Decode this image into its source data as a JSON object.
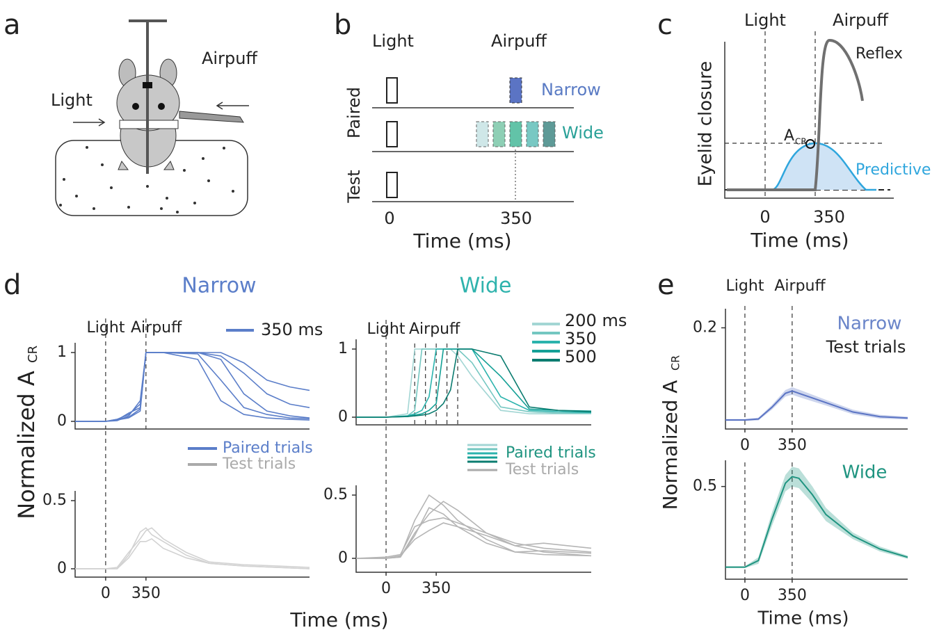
{
  "panels": {
    "a": {
      "label": "a",
      "light": "Light",
      "airpuff": "Airpuff"
    },
    "b": {
      "label": "b",
      "light": "Light",
      "airpuff": "Airpuff",
      "paired": "Paired",
      "test": "Test",
      "narrow": "Narrow",
      "wide": "Wide",
      "xtick0": "0",
      "xtick1": "350",
      "xlabel": "Time (ms)"
    },
    "c": {
      "label": "c",
      "light": "Light",
      "airpuff": "Airpuff",
      "reflex": "Reflex",
      "ylabel": "Eyelid closure",
      "acr": "A",
      "acr_sub": "CR",
      "predictive": "Predictive",
      "xtick0": "0",
      "xtick1": "350",
      "xlabel": "Time (ms)"
    },
    "d": {
      "label": "d",
      "ylabel": "Normalized A",
      "ylabel_sub": "CR",
      "xlabel": "Time (ms)"
    },
    "e": {
      "label": "e",
      "ylabel": "Normalized A",
      "ylabel_sub": "CR",
      "xlabel": "Time (ms)"
    }
  },
  "chart_data": [
    {
      "type": "line",
      "title": "Narrow",
      "xlim": [
        -265,
        1770
      ],
      "ylim": [
        0,
        1
      ],
      "yticks": [
        0,
        1
      ],
      "markers": [
        0,
        350
      ],
      "marker_labels": [
        "Light",
        "Airpuff"
      ],
      "x": [
        -265,
        0,
        100,
        200,
        300,
        350,
        500,
        800,
        1000,
        1200,
        1400,
        1600,
        1770
      ],
      "legend": [
        {
          "label": "350 ms",
          "color": "#5b7ec9"
        }
      ],
      "series": [
        {
          "color": "#5b7ec9",
          "values": [
            0,
            0,
            0.03,
            0.1,
            0.25,
            1,
            1,
            1,
            0.9,
            0.4,
            0.15,
            0.08,
            0.05
          ]
        },
        {
          "color": "#5b7ec9",
          "values": [
            0,
            0,
            0.02,
            0.05,
            0.15,
            1,
            1,
            0.98,
            0.6,
            0.2,
            0.1,
            0.05,
            0.04
          ]
        },
        {
          "color": "#5b7ec9",
          "values": [
            0,
            0,
            0.01,
            0.08,
            0.3,
            1,
            1,
            1,
            1,
            0.85,
            0.6,
            0.5,
            0.45
          ]
        },
        {
          "color": "#5b7ec9",
          "values": [
            0,
            0,
            0.02,
            0.12,
            0.2,
            1,
            1,
            0.9,
            0.3,
            0.1,
            0.05,
            0.03,
            0.02
          ]
        },
        {
          "color": "#5b7ec9",
          "values": [
            0,
            0,
            0.03,
            0.06,
            0.18,
            1,
            1,
            1,
            0.95,
            0.7,
            0.4,
            0.25,
            0.2
          ]
        }
      ]
    },
    {
      "type": "line",
      "xlim": [
        -265,
        1770
      ],
      "ylim": [
        0,
        0.5
      ],
      "yticks": [
        0,
        0.5
      ],
      "xticks": [
        0,
        350
      ],
      "markers": [
        0
      ],
      "x": [
        -265,
        0,
        100,
        200,
        300,
        350,
        400,
        500,
        700,
        900,
        1200,
        1500,
        1770
      ],
      "legend": [
        {
          "label": "Paired trials",
          "color": "#5b7ec9"
        },
        {
          "label": "Test trials",
          "color": "#aaaaaa"
        }
      ],
      "series": [
        {
          "color": "#d2d2d2",
          "values": [
            0,
            0,
            0,
            0.1,
            0.27,
            0.3,
            0.25,
            0.2,
            0.1,
            0.04,
            0.02,
            0.01,
            0
          ]
        },
        {
          "color": "#d2d2d2",
          "values": [
            0,
            0,
            0.01,
            0.12,
            0.22,
            0.28,
            0.3,
            0.22,
            0.12,
            0.05,
            0.03,
            0.02,
            0.01
          ]
        },
        {
          "color": "#d2d2d2",
          "values": [
            0,
            0,
            0,
            0.08,
            0.2,
            0.2,
            0.22,
            0.15,
            0.08,
            0.04,
            0.02,
            0.01,
            0
          ]
        }
      ]
    },
    {
      "type": "line",
      "title": "Wide",
      "xlim": [
        -209,
        1432
      ],
      "ylim": [
        0,
        1
      ],
      "yticks": [
        0,
        1
      ],
      "markers": [
        0
      ],
      "isi_markers": [
        200,
        275,
        350,
        425,
        500
      ],
      "marker_labels": [
        "Light",
        "Airpuff"
      ],
      "x": [
        -209,
        0,
        150,
        200,
        250,
        300,
        350,
        400,
        450,
        500,
        600,
        800,
        1000,
        1200,
        1432
      ],
      "legend": [
        {
          "label": "200 ms"
        },
        {
          "label": "350"
        },
        {
          "label": "500"
        }
      ],
      "series": [
        {
          "color": "#a3d6d4",
          "values": [
            0,
            0,
            0.05,
            1,
            1,
            1,
            1,
            1,
            1,
            0.9,
            0.6,
            0.1,
            0.05,
            0.05,
            0.05
          ]
        },
        {
          "color": "#74c7c1",
          "values": [
            0,
            0,
            0.02,
            0.1,
            1,
            1,
            1,
            1,
            1,
            1,
            0.8,
            0.15,
            0.08,
            0.06,
            0.06
          ]
        },
        {
          "color": "#2bb3ad",
          "values": [
            0,
            0,
            0.02,
            0.05,
            0.1,
            0.3,
            1,
            1,
            1,
            1,
            1,
            0.3,
            0.1,
            0.08,
            0.07
          ]
        },
        {
          "color": "#14a096",
          "values": [
            0,
            0,
            0.01,
            0.03,
            0.05,
            0.1,
            0.2,
            1,
            1,
            1,
            1,
            0.6,
            0.12,
            0.1,
            0.09
          ]
        },
        {
          "color": "#0b7c70",
          "values": [
            0,
            0,
            0.01,
            0.02,
            0.03,
            0.05,
            0.1,
            0.2,
            0.4,
            1,
            1,
            0.9,
            0.15,
            0.1,
            0.08
          ]
        }
      ]
    },
    {
      "type": "line",
      "xlim": [
        -209,
        1432
      ],
      "ylim": [
        0,
        0.5
      ],
      "yticks": [
        0,
        0.5
      ],
      "xticks": [
        0,
        350
      ],
      "markers": [
        0
      ],
      "x": [
        -209,
        0,
        100,
        200,
        300,
        400,
        500,
        700,
        900,
        1100,
        1432
      ],
      "legend": [
        {
          "label": "Paired trials",
          "color": "#1f9480"
        },
        {
          "label": "Test trials",
          "color": "#aaaaaa"
        }
      ],
      "series": [
        {
          "color": "#b5b5b5",
          "values": [
            0,
            0,
            0.02,
            0.3,
            0.5,
            0.42,
            0.3,
            0.15,
            0.05,
            0.03,
            0.02
          ]
        },
        {
          "color": "#b5b5b5",
          "values": [
            0,
            0,
            0.01,
            0.2,
            0.35,
            0.45,
            0.38,
            0.2,
            0.1,
            0.12,
            0.08
          ]
        },
        {
          "color": "#b5b5b5",
          "values": [
            0,
            0.01,
            0.03,
            0.25,
            0.3,
            0.32,
            0.28,
            0.2,
            0.12,
            0.08,
            0.05
          ]
        },
        {
          "color": "#b5b5b5",
          "values": [
            0,
            0,
            0.02,
            0.15,
            0.22,
            0.28,
            0.25,
            0.18,
            0.1,
            0.05,
            0.02
          ]
        },
        {
          "color": "#b5b5b5",
          "values": [
            0,
            0,
            0.01,
            0.18,
            0.4,
            0.35,
            0.25,
            0.12,
            0.05,
            0.06,
            0.04
          ]
        }
      ]
    },
    {
      "type": "line",
      "title": "Narrow",
      "subtitle": "Test trials",
      "xlim": [
        -144,
        1206
      ],
      "ylim": [
        0,
        0.22
      ],
      "yticks": [
        0.2
      ],
      "xticks": [
        0,
        350
      ],
      "markers": [
        0,
        350
      ],
      "marker_labels": [
        "Light",
        "Airpuff"
      ],
      "x": [
        -144,
        0,
        100,
        200,
        300,
        350,
        400,
        500,
        600,
        800,
        1000,
        1206
      ],
      "series": [
        {
          "color": "#5b74c4",
          "values": [
            0.003,
            0.003,
            0.005,
            0.03,
            0.06,
            0.065,
            0.06,
            0.05,
            0.04,
            0.02,
            0.01,
            0.007
          ],
          "errors": [
            0.002,
            0.002,
            0.003,
            0.005,
            0.007,
            0.008,
            0.008,
            0.007,
            0.006,
            0.005,
            0.004,
            0.003
          ]
        }
      ]
    },
    {
      "type": "line",
      "title": "Wide",
      "xlim": [
        -144,
        1206
      ],
      "ylim": [
        0,
        0.6
      ],
      "yticks": [
        0.5
      ],
      "xticks": [
        0,
        350
      ],
      "markers": [
        0,
        350
      ],
      "x": [
        -144,
        0,
        100,
        200,
        300,
        350,
        400,
        500,
        600,
        800,
        1000,
        1206
      ],
      "series": [
        {
          "color": "#1f9480",
          "values": [
            0.01,
            0.01,
            0.05,
            0.3,
            0.52,
            0.56,
            0.55,
            0.45,
            0.33,
            0.2,
            0.12,
            0.07
          ],
          "errors": [
            0.005,
            0.005,
            0.02,
            0.04,
            0.05,
            0.06,
            0.06,
            0.05,
            0.04,
            0.02,
            0.015,
            0.01
          ]
        }
      ]
    }
  ]
}
